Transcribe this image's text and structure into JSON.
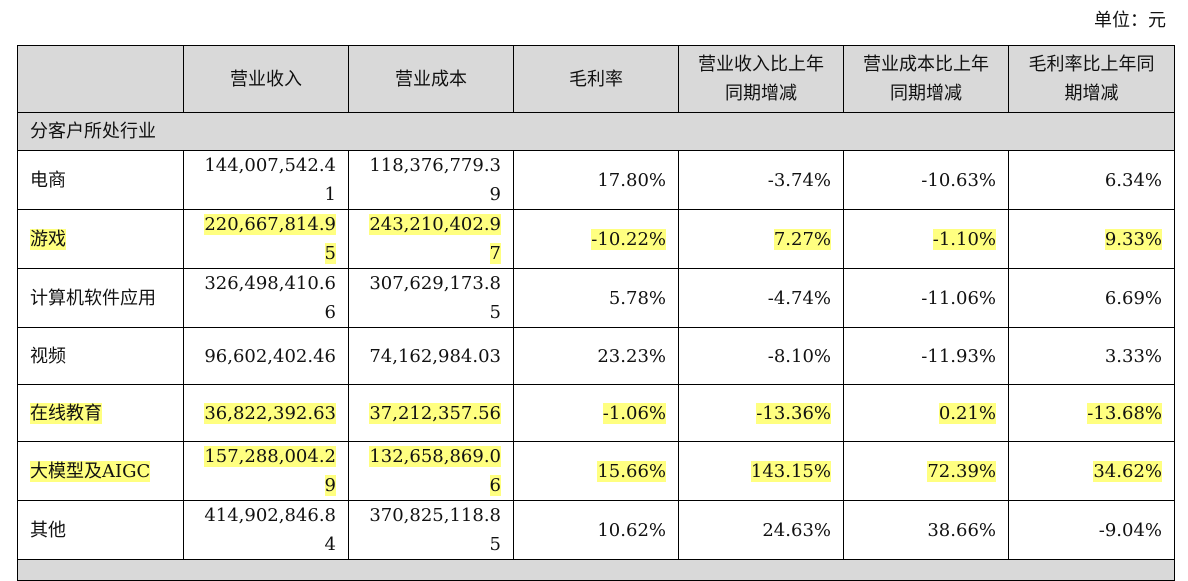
{
  "unit_label": "单位：元",
  "headers": [
    "",
    "营业收入",
    "营业成本",
    "毛利率",
    "营业收入比上年同期增减",
    "营业成本比上年同期增减",
    "毛利率比上年同期增减"
  ],
  "section": "分客户所处行业",
  "highlight_color": "#ffff80",
  "rows": [
    {
      "name": "电商",
      "revenue": "144,007,542.41",
      "cost": "118,376,779.39",
      "margin": "17.80%",
      "rev_change": "-3.74%",
      "cost_change": "-10.63%",
      "margin_change": "6.34%",
      "highlighted": false
    },
    {
      "name": "游戏",
      "revenue": "220,667,814.95",
      "cost": "243,210,402.97",
      "margin": "-10.22%",
      "rev_change": "7.27%",
      "cost_change": "-1.10%",
      "margin_change": "9.33%",
      "highlighted": true
    },
    {
      "name": "计算机软件应用",
      "revenue": "326,498,410.66",
      "cost": "307,629,173.85",
      "margin": "5.78%",
      "rev_change": "-4.74%",
      "cost_change": "-11.06%",
      "margin_change": "6.69%",
      "highlighted": false
    },
    {
      "name": "视频",
      "revenue": "96,602,402.46",
      "cost": "74,162,984.03",
      "margin": "23.23%",
      "rev_change": "-8.10%",
      "cost_change": "-11.93%",
      "margin_change": "3.33%",
      "highlighted": false
    },
    {
      "name": "在线教育",
      "revenue": "36,822,392.63",
      "cost": "37,212,357.56",
      "margin": "-1.06%",
      "rev_change": "-13.36%",
      "cost_change": "0.21%",
      "margin_change": "-13.68%",
      "highlighted": true
    },
    {
      "name": "大模型及AIGC",
      "revenue": "157,288,004.29",
      "cost": "132,658,869.06",
      "margin": "15.66%",
      "rev_change": "143.15%",
      "cost_change": "72.39%",
      "margin_change": "34.62%",
      "highlighted": true
    },
    {
      "name": "其他",
      "revenue": "414,902,846.84",
      "cost": "370,825,118.85",
      "margin": "10.62%",
      "rev_change": "24.63%",
      "cost_change": "38.66%",
      "margin_change": "-9.04%",
      "highlighted": false
    }
  ]
}
